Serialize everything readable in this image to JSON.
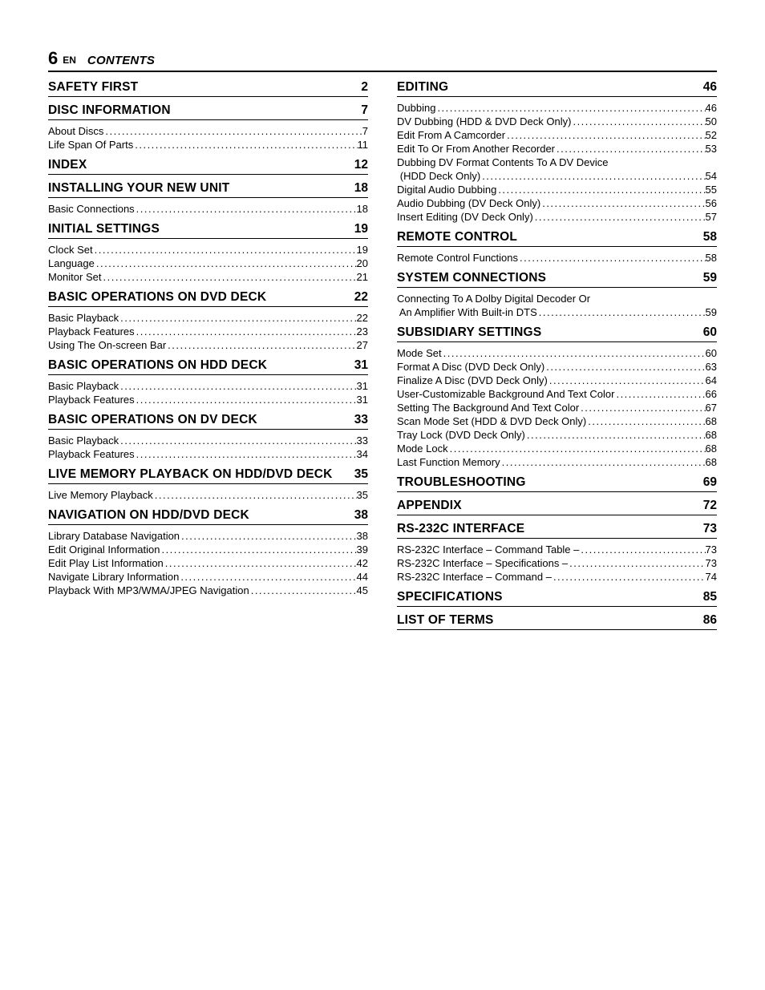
{
  "header": {
    "page_number": "6",
    "lang": "EN",
    "title": "CONTENTS"
  },
  "left_column": [
    {
      "type": "section",
      "title": "SAFETY FIRST",
      "page": "2",
      "entries": []
    },
    {
      "type": "section",
      "title": "DISC INFORMATION",
      "page": "7",
      "entries": [
        {
          "label": "About Discs",
          "page": "7"
        },
        {
          "label": "Life Span Of Parts",
          "page": "11"
        }
      ]
    },
    {
      "type": "section",
      "title": "INDEX",
      "page": "12",
      "entries": []
    },
    {
      "type": "section",
      "title": "INSTALLING YOUR NEW UNIT",
      "page": "18",
      "entries": [
        {
          "label": "Basic Connections",
          "page": "18"
        }
      ]
    },
    {
      "type": "section",
      "title": "INITIAL SETTINGS",
      "page": "19",
      "entries": [
        {
          "label": "Clock Set",
          "page": "19"
        },
        {
          "label": "Language",
          "page": "20"
        },
        {
          "label": "Monitor Set",
          "page": "21"
        }
      ]
    },
    {
      "type": "section",
      "title": "BASIC OPERATIONS ON DVD DECK",
      "page": "22",
      "entries": [
        {
          "label": "Basic Playback",
          "page": "22"
        },
        {
          "label": "Playback Features",
          "page": "23"
        },
        {
          "label": "Using The On-screen Bar",
          "page": "27"
        }
      ]
    },
    {
      "type": "section",
      "title": "BASIC OPERATIONS ON HDD DECK",
      "page": "31",
      "entries": [
        {
          "label": "Basic Playback",
          "page": "31"
        },
        {
          "label": "Playback Features",
          "page": "31"
        }
      ]
    },
    {
      "type": "section",
      "title": "BASIC OPERATIONS ON DV DECK",
      "page": "33",
      "entries": [
        {
          "label": "Basic Playback",
          "page": "33"
        },
        {
          "label": "Playback Features",
          "page": "34"
        }
      ]
    },
    {
      "type": "section",
      "title": "LIVE MEMORY PLAYBACK ON HDD/DVD DECK",
      "page": "35",
      "entries": [
        {
          "label": "Live Memory Playback",
          "page": "35"
        }
      ]
    },
    {
      "type": "section",
      "title": "NAVIGATION ON HDD/DVD DECK",
      "page": "38",
      "entries": [
        {
          "label": "Library Database Navigation",
          "page": "38"
        },
        {
          "label": "Edit Original Information",
          "page": "39"
        },
        {
          "label": "Edit Play List Information",
          "page": "42"
        },
        {
          "label": "Navigate Library Information",
          "page": "44"
        },
        {
          "label": "Playback With MP3/WMA/JPEG Navigation",
          "page": "45"
        }
      ]
    }
  ],
  "right_column": [
    {
      "type": "section",
      "title": "EDITING",
      "page": "46",
      "entries": [
        {
          "label": "Dubbing",
          "page": "46"
        },
        {
          "label": "DV Dubbing (HDD & DVD Deck Only)",
          "page": "50"
        },
        {
          "label": "Edit From A Camcorder",
          "page": "52"
        },
        {
          "label": "Edit To Or From Another Recorder",
          "page": "53"
        },
        {
          "label_first": "Dubbing DV Format Contents To A DV Device",
          "label": "(HDD Deck Only)",
          "indent": true,
          "page": "54"
        },
        {
          "label": "Digital Audio Dubbing",
          "page": "55"
        },
        {
          "label": "Audio Dubbing (DV Deck Only)",
          "page": "56"
        },
        {
          "label": "Insert Editing (DV Deck Only)",
          "page": "57"
        }
      ]
    },
    {
      "type": "section",
      "title": "REMOTE CONTROL",
      "page": "58",
      "entries": [
        {
          "label": "Remote Control Functions",
          "page": "58"
        }
      ]
    },
    {
      "type": "section",
      "title": "SYSTEM CONNECTIONS",
      "page": "59",
      "entries": [
        {
          "label_first": "Connecting To A Dolby Digital Decoder Or",
          "label": "An Amplifier With Built-in DTS",
          "indent": true,
          "page": "59"
        }
      ]
    },
    {
      "type": "section",
      "title": "SUBSIDIARY SETTINGS",
      "page": "60",
      "entries": [
        {
          "label": "Mode Set",
          "page": "60"
        },
        {
          "label": "Format A Disc (DVD Deck Only)",
          "page": "63"
        },
        {
          "label": "Finalize A Disc (DVD Deck Only)",
          "page": "64"
        },
        {
          "label": "User-Customizable Background And Text Color",
          "page": "66"
        },
        {
          "label": "Setting The Background And Text Color",
          "page": "67"
        },
        {
          "label": "Scan Mode Set (HDD & DVD Deck Only)",
          "page": "68"
        },
        {
          "label": "Tray Lock (DVD Deck Only)",
          "page": "68"
        },
        {
          "label": "Mode Lock",
          "page": "68"
        },
        {
          "label": "Last Function Memory",
          "page": "68"
        }
      ]
    },
    {
      "type": "section",
      "title": "TROUBLESHOOTING",
      "page": "69",
      "entries": []
    },
    {
      "type": "section",
      "title": "APPENDIX",
      "page": "72",
      "entries": []
    },
    {
      "type": "section",
      "title": "RS-232C INTERFACE",
      "page": "73",
      "entries": [
        {
          "label": "RS-232C Interface – Command Table –",
          "page": "73"
        },
        {
          "label": "RS-232C Interface – Specifications –",
          "page": "73"
        },
        {
          "label": "RS-232C Interface – Command –",
          "page": "74"
        }
      ]
    },
    {
      "type": "section",
      "title": "SPECIFICATIONS",
      "page": "85",
      "entries": []
    },
    {
      "type": "section",
      "title": "LIST OF TERMS",
      "page": "86",
      "entries": []
    }
  ]
}
